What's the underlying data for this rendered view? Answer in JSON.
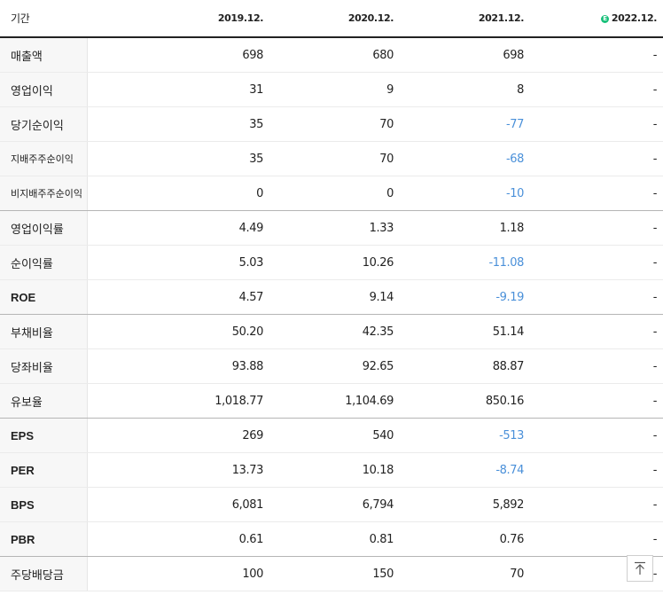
{
  "header": {
    "period_label": "기간",
    "years": [
      "2019.12.",
      "2020.12.",
      "2021.12.",
      "2022.12."
    ],
    "estimate_badge": "E"
  },
  "rows": [
    {
      "label": "매출액",
      "values": [
        "698",
        "680",
        "698",
        "-"
      ]
    },
    {
      "label": "영업이익",
      "values": [
        "31",
        "9",
        "8",
        "-"
      ]
    },
    {
      "label": "당기순이익",
      "values": [
        "35",
        "70",
        "-77",
        "-"
      ]
    },
    {
      "label": "지배주주순이익",
      "values": [
        "35",
        "70",
        "-68",
        "-"
      ]
    },
    {
      "label": "비지배주주순이익",
      "values": [
        "0",
        "0",
        "-10",
        "-"
      ]
    },
    {
      "label": "영업이익률",
      "values": [
        "4.49",
        "1.33",
        "1.18",
        "-"
      ]
    },
    {
      "label": "순이익률",
      "values": [
        "5.03",
        "10.26",
        "-11.08",
        "-"
      ]
    },
    {
      "label": "ROE",
      "values": [
        "4.57",
        "9.14",
        "-9.19",
        "-"
      ]
    },
    {
      "label": "부채비율",
      "values": [
        "50.20",
        "42.35",
        "51.14",
        "-"
      ]
    },
    {
      "label": "당좌비율",
      "values": [
        "93.88",
        "92.65",
        "88.87",
        "-"
      ]
    },
    {
      "label": "유보율",
      "values": [
        "1,018.77",
        "1,104.69",
        "850.16",
        "-"
      ]
    },
    {
      "label": "EPS",
      "values": [
        "269",
        "540",
        "-513",
        "-"
      ]
    },
    {
      "label": "PER",
      "values": [
        "13.73",
        "10.18",
        "-8.74",
        "-"
      ]
    },
    {
      "label": "BPS",
      "values": [
        "6,081",
        "6,794",
        "5,892",
        "-"
      ]
    },
    {
      "label": "PBR",
      "values": [
        "0.61",
        "0.81",
        "0.76",
        "-"
      ]
    },
    {
      "label": "주당배당금",
      "values": [
        "100",
        "150",
        "70",
        "-"
      ]
    }
  ],
  "colors": {
    "negative": "#4a90d9",
    "estimate_badge": "#18c07a",
    "label_background": "#f7f7f7"
  },
  "scroll_top_icon": "arrow-up-to-top-icon"
}
